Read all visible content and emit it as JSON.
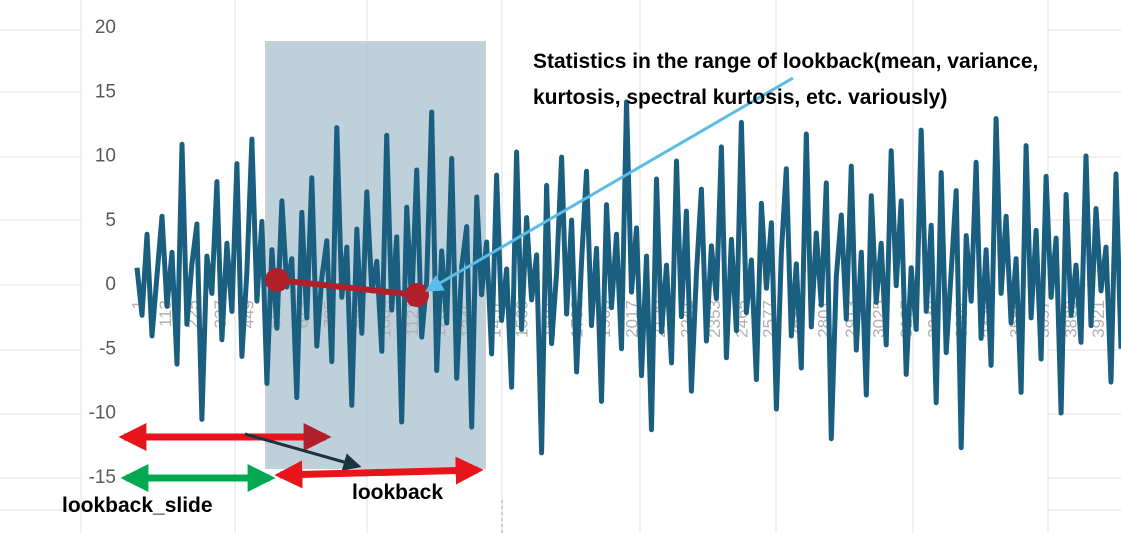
{
  "chart_data": {
    "type": "line",
    "title": "",
    "xlabel": "",
    "ylabel": "",
    "ylim": [
      -15,
      20
    ],
    "yticks": [
      20,
      15,
      10,
      5,
      0,
      -5,
      -10,
      -15
    ],
    "x_range": [
      1,
      4000
    ],
    "xtick_labels": [
      "1",
      "113",
      "225",
      "337",
      "449",
      "561",
      "673",
      "785",
      "897",
      "1009",
      "1121",
      "1233",
      "1345",
      "1457",
      "1569",
      "1681",
      "1793",
      "1905",
      "2017",
      "2129",
      "2241",
      "2353",
      "2465",
      "2577",
      "2689",
      "2801",
      "2913",
      "3025",
      "3137",
      "3249",
      "3361",
      "3473",
      "3585",
      "3697",
      "3809",
      "3921"
    ],
    "series": [
      {
        "color": "#1a5e80",
        "values": [
          1.2,
          -2.5,
          3.8,
          -4.1,
          0.6,
          5.2,
          -1.8,
          2.4,
          -6.3,
          10.8,
          -3.2,
          1.5,
          4.6,
          -10.6,
          2.1,
          -0.8,
          7.9,
          -4.4,
          3.1,
          -2.2,
          9.3,
          -5.7,
          0.9,
          11.2,
          -1.4,
          4.8,
          -7.8,
          2.6,
          -3.5,
          6.4,
          -0.3,
          1.9,
          -8.9,
          5.5,
          -2.7,
          8.2,
          -4.9,
          0.4,
          3.3,
          -6.1,
          12.1,
          -1.1,
          2.8,
          -9.5,
          4.2,
          -3.9,
          7.1,
          -0.6,
          1.7,
          -5.3,
          11.5,
          -2.1,
          3.6,
          -10.8,
          5.9,
          -1.6,
          8.8,
          -4.2,
          0.2,
          13.3,
          -6.8,
          2.5,
          -3.1,
          9.7,
          -7.4,
          1.3,
          4.4,
          -11.2,
          6.7,
          -0.9,
          3.2,
          -5.5,
          8.4,
          -2.9,
          1.1,
          -8.1,
          10.2,
          -3.6,
          5.1,
          -1.3,
          2.2,
          -13.2,
          7.6,
          -4.7,
          0.8,
          9.8,
          -2.4,
          4.9,
          -6.9,
          1.6,
          8.7,
          -3.3,
          2.7,
          -9.2,
          6.1,
          -1.9,
          3.8,
          -5.1,
          14.1,
          -0.7,
          4.3,
          -7.2,
          2.1,
          -11.4,
          8.1,
          -3.8,
          1.4,
          -6.2,
          9.5,
          -2.6,
          5.6,
          -8.4,
          0.7,
          7.3,
          -4.5,
          2.9,
          -1.2,
          10.6,
          -5.8,
          3.4,
          -3.7,
          12.5,
          -2.3,
          1.8,
          -7.5,
          6.2,
          -0.4,
          4.7,
          -9.8,
          2.3,
          8.9,
          -4.1,
          1.5,
          -6.6,
          11.6,
          -3.4,
          3.9,
          -1.7,
          7.8,
          -12.1,
          0.5,
          5.3,
          -2.8,
          9.1,
          -5.2,
          2.4,
          -8.7,
          6.8,
          -1.5,
          3.1,
          -4.8,
          10.3,
          -0.2,
          6.4,
          -7.1,
          1.2,
          -3.6,
          11.9,
          -2.2,
          4.5,
          -9.3,
          8.6,
          -5.4,
          0.9,
          7.2,
          -12.8,
          3.7,
          -1.4,
          9.4,
          -4.3,
          2.6,
          -6.4,
          12.8,
          -0.8,
          5.2,
          -3.1,
          1.9,
          -8.5,
          10.7,
          -2.7,
          4.1,
          -5.9,
          8.3,
          -1.1,
          3.5,
          -10.1,
          6.9,
          -2.5,
          1.4,
          -4.6,
          9.9,
          -3.3,
          5.8,
          -0.6,
          2.8,
          -7.7,
          8.5,
          -5.1
        ]
      }
    ]
  },
  "annotations": {
    "stats_text_line1": "Statistics in the range of lookback(mean, variance,",
    "stats_text_line2": "kurtosis, spectral kurtosis, etc. variously)",
    "lookback_slide_label": "lookback_slide",
    "lookback_label": "lookback",
    "colors": {
      "shade": "#aec4d1",
      "red": "#e8141b",
      "dark_red": "#b0202a",
      "green": "#00a84f",
      "light_blue": "#5bbce8",
      "dark_arrow": "#1d3340"
    }
  }
}
